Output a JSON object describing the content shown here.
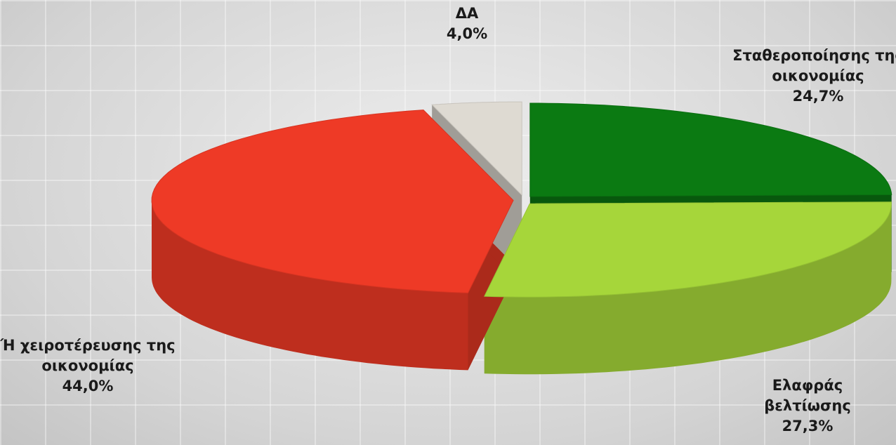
{
  "chart_data": {
    "type": "pie",
    "categories": [
      "Σταθεροποίησης της οικονομίας",
      "Ελαφράς βελτίωσης",
      "Ή χειροτέρευσης της οικονομίας",
      "ΔΑ"
    ],
    "values": [
      24.7,
      27.3,
      44.0,
      4.0
    ],
    "value_labels": [
      "24,7%",
      "27,3%",
      "44,0%",
      "4,0%"
    ],
    "colors": [
      "#0b7a12",
      "#a6d63a",
      "#ee3a26",
      "#dedad2"
    ]
  }
}
